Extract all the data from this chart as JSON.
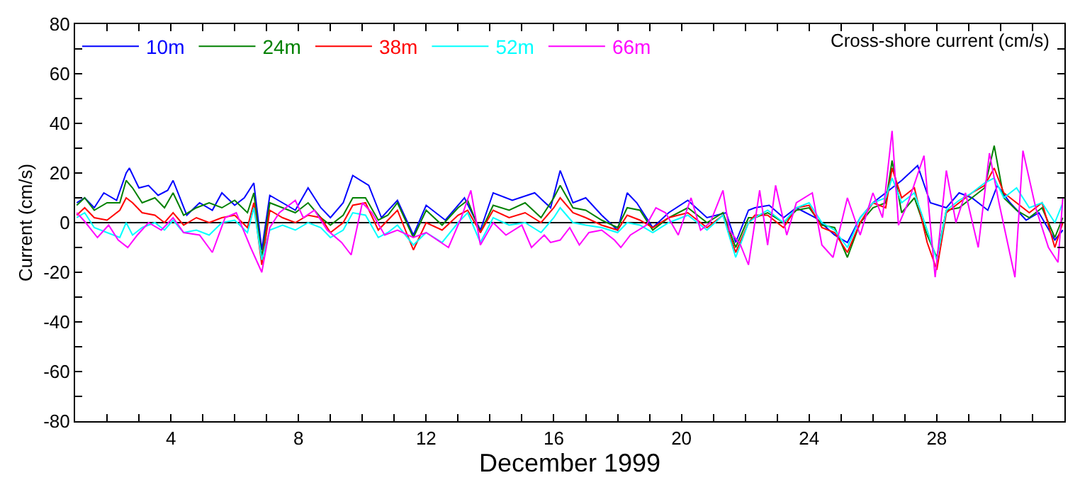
{
  "chart_data": {
    "type": "line",
    "title": "Cross-shore current (cm/s)",
    "xlabel": "December 1999",
    "ylabel": "Current (cm/s)",
    "xlim": [
      1,
      32
    ],
    "ylim": [
      -80,
      80
    ],
    "xticks": [
      {
        "value": 2,
        "label": null
      },
      {
        "value": 3,
        "label": null
      },
      4,
      {
        "value": 5,
        "label": null
      },
      {
        "value": 6,
        "label": null
      },
      {
        "value": 7,
        "label": null
      },
      8,
      {
        "value": 9,
        "label": null
      },
      {
        "value": 10,
        "label": null
      },
      {
        "value": 11,
        "label": null
      },
      12,
      {
        "value": 13,
        "label": null
      },
      {
        "value": 14,
        "label": null
      },
      {
        "value": 15,
        "label": null
      },
      16,
      {
        "value": 17,
        "label": null
      },
      {
        "value": 18,
        "label": null
      },
      {
        "value": 19,
        "label": null
      },
      20,
      {
        "value": 21,
        "label": null
      },
      {
        "value": 22,
        "label": null
      },
      {
        "value": 23,
        "label": null
      },
      24,
      {
        "value": 25,
        "label": null
      },
      {
        "value": 26,
        "label": null
      },
      {
        "value": 27,
        "label": null
      },
      28,
      {
        "value": 29,
        "label": null
      },
      {
        "value": 30,
        "label": null
      },
      {
        "value": 31,
        "label": null
      }
    ],
    "yticks": [
      -80,
      {
        "value": -70,
        "label": null
      },
      -60,
      {
        "value": -50,
        "label": null
      },
      -40,
      {
        "value": -30,
        "label": null
      },
      -20,
      {
        "value": -10,
        "label": null
      },
      0,
      {
        "value": 10,
        "label": null
      },
      20,
      {
        "value": 30,
        "label": null
      },
      40,
      {
        "value": 50,
        "label": null
      },
      60,
      {
        "value": 70,
        "label": null
      },
      80
    ],
    "grid": false,
    "legend": "top left",
    "marker": "none",
    "line_style": "solid",
    "ref_lines": [
      {
        "axis": "y",
        "value": 0,
        "color": "#000000"
      }
    ],
    "series": [
      {
        "name": "10m",
        "color": "#0000ff",
        "x": [
          1.05,
          1.3,
          1.6,
          1.9,
          2.3,
          2.6,
          2.7,
          3.0,
          3.3,
          3.6,
          3.9,
          4.07,
          4.5,
          4.9,
          5.3,
          5.6,
          6.0,
          6.3,
          6.6,
          6.85,
          7.1,
          7.5,
          7.9,
          8.3,
          8.7,
          9.0,
          9.4,
          9.7,
          10.2,
          10.6,
          11.1,
          11.6,
          12.0,
          12.6,
          13.2,
          13.7,
          14.1,
          14.7,
          15.4,
          15.9,
          16.2,
          16.6,
          17.0,
          17.5,
          18.0,
          18.3,
          18.6,
          19.1,
          19.6,
          20.2,
          20.8,
          21.4,
          21.7,
          22.1,
          22.3,
          22.75,
          23.2,
          23.6,
          24.2,
          24.8,
          25.2,
          25.6,
          26.0,
          26.5,
          26.9,
          27.4,
          27.8,
          28.3,
          28.7,
          29.1,
          29.6,
          29.9,
          30.3,
          30.8,
          31.2,
          31.7,
          31.95
        ],
        "values": [
          8,
          10,
          6,
          12,
          9,
          20,
          22,
          14,
          15,
          11,
          13,
          17,
          3,
          8,
          5,
          12,
          7,
          10,
          16,
          -11,
          11,
          8,
          5,
          14,
          6,
          2,
          8,
          19,
          15,
          2,
          9,
          -5,
          7,
          1,
          10,
          -3,
          12,
          9,
          12,
          6,
          21,
          8,
          10,
          3,
          -3,
          12,
          8,
          -2,
          4,
          9,
          2,
          4,
          -8,
          5,
          6,
          7,
          2,
          6,
          2,
          -5,
          -8,
          2,
          8,
          13,
          17,
          23,
          8,
          6,
          12,
          10,
          5,
          15,
          8,
          1,
          4,
          -7,
          -3
        ]
      },
      {
        "name": "24m",
        "color": "#008000",
        "x": [
          1.05,
          1.3,
          1.6,
          2.0,
          2.4,
          2.6,
          2.8,
          3.1,
          3.5,
          3.8,
          4.07,
          4.4,
          4.8,
          5.2,
          5.6,
          6.0,
          6.4,
          6.6,
          6.85,
          7.1,
          7.5,
          7.9,
          8.3,
          8.7,
          9.0,
          9.4,
          9.7,
          10.1,
          10.5,
          10.8,
          11.1,
          11.6,
          12.0,
          12.5,
          13.0,
          13.3,
          13.7,
          14.1,
          14.6,
          15.1,
          15.6,
          16.0,
          16.2,
          16.6,
          17.0,
          17.5,
          18.0,
          18.3,
          18.7,
          19.1,
          19.6,
          20.2,
          20.8,
          21.3,
          21.7,
          22.1,
          22.3,
          22.7,
          23.2,
          23.6,
          24.0,
          24.4,
          24.8,
          25.2,
          25.6,
          26.0,
          26.4,
          26.6,
          26.9,
          27.3,
          27.7,
          28.0,
          28.3,
          28.7,
          29.1,
          29.5,
          29.8,
          30.1,
          30.5,
          30.9,
          31.3,
          31.7,
          31.95
        ],
        "values": [
          7,
          10,
          5,
          8,
          8,
          17,
          14,
          8,
          10,
          6,
          12,
          3,
          6,
          8,
          6,
          9,
          4,
          12,
          -14,
          8,
          6,
          4,
          8,
          2,
          -1,
          3,
          10,
          10,
          1,
          3,
          8,
          -6,
          5,
          -1,
          6,
          9,
          -4,
          7,
          5,
          8,
          2,
          10,
          15,
          6,
          5,
          1,
          -2,
          6,
          5,
          -3,
          2,
          6,
          0,
          4,
          -10,
          2,
          2,
          4,
          0,
          5,
          6,
          -1,
          -2,
          -14,
          0,
          6,
          8,
          25,
          4,
          10,
          -5,
          -14,
          5,
          6,
          10,
          14,
          31,
          10,
          5,
          2,
          6,
          -6,
          2
        ]
      },
      {
        "name": "38m",
        "color": "#ff0000",
        "x": [
          1.05,
          1.3,
          1.6,
          2.0,
          2.4,
          2.6,
          2.8,
          3.1,
          3.5,
          3.8,
          4.07,
          4.4,
          4.8,
          5.2,
          5.6,
          6.0,
          6.4,
          6.6,
          6.85,
          7.1,
          7.5,
          7.9,
          8.3,
          8.7,
          9.0,
          9.4,
          9.7,
          10.1,
          10.5,
          10.8,
          11.1,
          11.6,
          12.0,
          12.5,
          13.0,
          13.3,
          13.7,
          14.1,
          14.6,
          15.1,
          15.6,
          16.0,
          16.2,
          16.6,
          17.0,
          17.5,
          18.0,
          18.3,
          18.7,
          19.1,
          19.6,
          20.2,
          20.8,
          21.3,
          21.7,
          22.1,
          22.3,
          22.7,
          23.2,
          23.6,
          24.0,
          24.4,
          24.8,
          25.2,
          25.6,
          26.0,
          26.4,
          26.6,
          26.9,
          27.3,
          27.7,
          28.0,
          28.3,
          28.7,
          29.1,
          29.5,
          29.8,
          30.1,
          30.5,
          30.9,
          31.3,
          31.7,
          31.95
        ],
        "values": [
          3,
          6,
          2,
          1,
          5,
          10,
          8,
          4,
          3,
          0,
          4,
          -1,
          2,
          0,
          2,
          3,
          -2,
          8,
          -17,
          5,
          2,
          0,
          3,
          2,
          -4,
          0,
          7,
          8,
          -3,
          1,
          5,
          -11,
          0,
          -3,
          3,
          5,
          -4,
          5,
          2,
          4,
          0,
          6,
          10,
          4,
          2,
          -1,
          -3,
          3,
          1,
          -2,
          2,
          4,
          -2,
          3,
          -12,
          0,
          3,
          3,
          -2,
          6,
          7,
          -2,
          -4,
          -12,
          0,
          8,
          6,
          22,
          10,
          14,
          -8,
          -19,
          4,
          8,
          12,
          15,
          22,
          12,
          8,
          4,
          8,
          -10,
          0
        ]
      },
      {
        "name": "52m",
        "color": "#00ffff",
        "x": [
          1.05,
          1.3,
          1.6,
          2.0,
          2.4,
          2.6,
          2.8,
          3.1,
          3.5,
          3.8,
          4.07,
          4.4,
          4.8,
          5.2,
          5.6,
          6.0,
          6.4,
          6.6,
          6.85,
          7.1,
          7.5,
          7.9,
          8.3,
          8.7,
          9.0,
          9.4,
          9.7,
          10.1,
          10.5,
          10.8,
          11.1,
          11.6,
          12.0,
          12.5,
          13.0,
          13.3,
          13.7,
          14.1,
          14.6,
          15.1,
          15.6,
          16.0,
          16.2,
          16.6,
          17.0,
          17.5,
          18.0,
          18.3,
          18.7,
          19.1,
          19.6,
          20.2,
          20.8,
          21.3,
          21.7,
          22.1,
          22.3,
          22.7,
          23.2,
          23.6,
          24.0,
          24.4,
          24.8,
          25.2,
          25.6,
          26.0,
          26.4,
          26.6,
          26.9,
          27.3,
          27.7,
          28.0,
          28.3,
          28.7,
          29.1,
          29.5,
          29.8,
          30.1,
          30.5,
          30.9,
          31.3,
          31.7,
          31.95
        ],
        "values": [
          2,
          4,
          -2,
          -4,
          -6,
          0,
          -5,
          -2,
          0,
          -3,
          1,
          -4,
          -3,
          -5,
          0,
          1,
          -4,
          6,
          -15,
          -3,
          -1,
          -3,
          0,
          -2,
          -6,
          -3,
          4,
          3,
          -6,
          -4,
          -1,
          -9,
          -4,
          -8,
          0,
          4,
          -8,
          2,
          -1,
          0,
          -4,
          2,
          6,
          0,
          -1,
          -2,
          -4,
          0,
          -1,
          -4,
          0,
          3,
          -3,
          3,
          -14,
          0,
          2,
          5,
          0,
          6,
          8,
          0,
          -3,
          -10,
          2,
          8,
          10,
          18,
          8,
          12,
          -3,
          -15,
          5,
          9,
          12,
          16,
          18,
          10,
          14,
          6,
          8,
          0,
          8
        ]
      },
      {
        "name": "66m",
        "color": "#ff00ff",
        "x": [
          1.05,
          1.3,
          1.7,
          2.05,
          2.35,
          2.65,
          2.95,
          3.3,
          3.7,
          4.07,
          4.4,
          4.9,
          5.3,
          5.7,
          6.05,
          6.5,
          6.85,
          7.1,
          7.4,
          7.9,
          8.15,
          8.5,
          8.9,
          9.35,
          9.65,
          10.0,
          10.3,
          10.7,
          11.1,
          11.6,
          12.0,
          12.7,
          13.1,
          13.4,
          13.7,
          14.1,
          14.5,
          15.0,
          15.3,
          15.7,
          15.9,
          16.2,
          16.5,
          16.8,
          17.1,
          17.5,
          17.9,
          18.1,
          18.4,
          18.9,
          19.2,
          19.5,
          19.9,
          20.3,
          20.6,
          20.9,
          21.3,
          21.5,
          21.85,
          22.1,
          22.45,
          22.7,
          22.95,
          23.3,
          23.6,
          24.1,
          24.4,
          24.75,
          25.2,
          25.6,
          26.0,
          26.3,
          26.6,
          26.8,
          27.1,
          27.6,
          27.95,
          28.3,
          28.6,
          28.9,
          29.3,
          29.65,
          29.95,
          30.45,
          30.7,
          31.1,
          31.5,
          31.8,
          31.95
        ],
        "values": [
          4,
          0.5,
          -6,
          -1,
          -7,
          -10,
          -5,
          0,
          -3,
          2,
          -4,
          -5,
          -12,
          2,
          4,
          -10,
          -20,
          -2,
          4,
          9,
          2,
          5,
          -3,
          -8,
          -13,
          8,
          4,
          -5,
          -3,
          -6,
          -4,
          -10,
          2,
          13,
          -9,
          0,
          -5,
          -1,
          -10,
          -5,
          -8,
          -7,
          -2,
          -9,
          -4,
          -3,
          -7,
          -10,
          -5,
          -1,
          6,
          4,
          -5,
          10,
          -3,
          0,
          13,
          -3,
          -9,
          -17,
          13,
          -9,
          15,
          -5,
          8,
          12,
          -9,
          -14,
          10,
          -5,
          12,
          2,
          37,
          -1,
          8,
          27,
          -22,
          21,
          0,
          12,
          -10,
          28,
          8,
          -22,
          29,
          6,
          -10,
          -16,
          10
        ]
      }
    ]
  }
}
